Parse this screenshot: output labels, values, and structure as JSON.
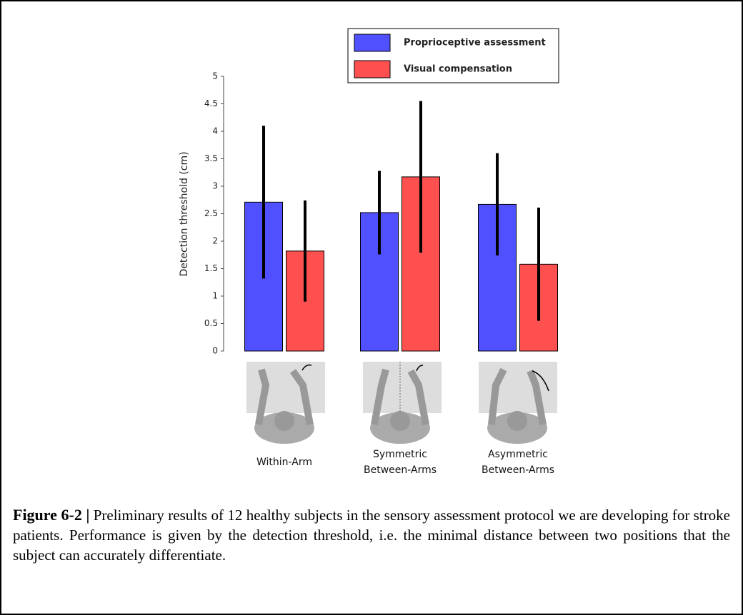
{
  "chart_data": {
    "type": "bar",
    "ylabel": "Detection threshold (cm)",
    "categories": [
      "Within-Arm",
      "Symmetric\nBetween-Arms",
      "Asymmetric\nBetween-Arms"
    ],
    "series": [
      {
        "name": "Proprioceptive assessment",
        "color": "#5050ff",
        "values": [
          2.71,
          2.52,
          2.67
        ],
        "errors": [
          1.39,
          0.76,
          0.93
        ]
      },
      {
        "name": "Visual compensation",
        "color": "#ff5050",
        "values": [
          1.82,
          3.17,
          1.58
        ],
        "errors": [
          0.92,
          1.38,
          1.03
        ]
      }
    ],
    "ylim": [
      0,
      5
    ],
    "yticks": [
      0,
      0.5,
      1,
      1.5,
      2,
      2.5,
      3,
      3.5,
      4,
      4.5,
      5
    ],
    "legend_position": "top"
  },
  "caption": {
    "label": "Figure 6-2 |",
    "text": "Preliminary results of 12 healthy subjects in the sensory assessment protocol we are developing for stroke patients. Performance is given by the detection threshold, i.e. the minimal distance between two positions that the subject can accurately differentiate."
  }
}
